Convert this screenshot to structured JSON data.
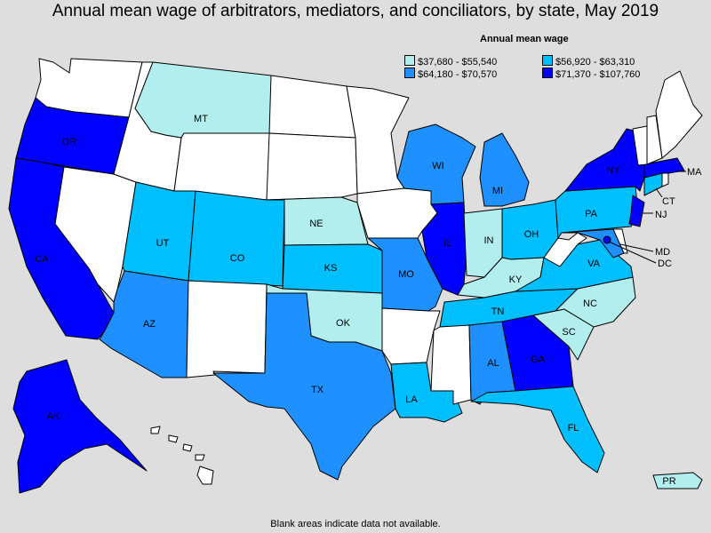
{
  "title": "Annual mean wage of arbitrators, mediators, and conciliators, by state, May 2019",
  "legend": {
    "title": "Annual mean wage",
    "bins": [
      {
        "label": "$37,680 - $55,540",
        "color": "#b3eeee"
      },
      {
        "label": "$56,920 - $63,310",
        "color": "#00bfff"
      },
      {
        "label": "$64,180 - $70,570",
        "color": "#1e90ff"
      },
      {
        "label": "$71,370 - $107,760",
        "color": "#0000ff"
      }
    ],
    "no_data_color": "#ffffff"
  },
  "footer": "Blank areas indicate data not available.",
  "states": {
    "WA": {
      "label": "",
      "bin": -1
    },
    "OR": {
      "label": "OR",
      "bin": 3
    },
    "CA": {
      "label": "CA",
      "bin": 3
    },
    "NV": {
      "label": "",
      "bin": -1
    },
    "ID": {
      "label": "",
      "bin": -1
    },
    "MT": {
      "label": "MT",
      "bin": 0
    },
    "WY": {
      "label": "",
      "bin": -1
    },
    "UT": {
      "label": "UT",
      "bin": 1
    },
    "AZ": {
      "label": "AZ",
      "bin": 2
    },
    "CO": {
      "label": "CO",
      "bin": 1
    },
    "NM": {
      "label": "",
      "bin": -1
    },
    "ND": {
      "label": "",
      "bin": -1
    },
    "SD": {
      "label": "",
      "bin": -1
    },
    "NE": {
      "label": "NE",
      "bin": 0
    },
    "KS": {
      "label": "KS",
      "bin": 1
    },
    "OK": {
      "label": "OK",
      "bin": 0
    },
    "TX": {
      "label": "TX",
      "bin": 2
    },
    "MN": {
      "label": "",
      "bin": -1
    },
    "IA": {
      "label": "",
      "bin": -1
    },
    "MO": {
      "label": "MO",
      "bin": 2
    },
    "AR": {
      "label": "",
      "bin": -1
    },
    "LA": {
      "label": "LA",
      "bin": 1
    },
    "WI": {
      "label": "WI",
      "bin": 2
    },
    "IL": {
      "label": "IL",
      "bin": 3
    },
    "MI": {
      "label": "MI",
      "bin": 2
    },
    "IN": {
      "label": "IN",
      "bin": 0
    },
    "OH": {
      "label": "OH",
      "bin": 1
    },
    "KY": {
      "label": "KY",
      "bin": 0
    },
    "TN": {
      "label": "TN",
      "bin": 1
    },
    "MS": {
      "label": "",
      "bin": -1
    },
    "AL": {
      "label": "AL",
      "bin": 2
    },
    "GA": {
      "label": "GA",
      "bin": 3
    },
    "FL": {
      "label": "FL",
      "bin": 1
    },
    "SC": {
      "label": "SC",
      "bin": 0
    },
    "NC": {
      "label": "NC",
      "bin": 0
    },
    "VA": {
      "label": "VA",
      "bin": 1
    },
    "WV": {
      "label": "",
      "bin": -1
    },
    "PA": {
      "label": "PA",
      "bin": 1
    },
    "NY": {
      "label": "NY",
      "bin": 3
    },
    "NJ": {
      "label": "NJ",
      "bin": 3
    },
    "MD": {
      "label": "MD",
      "bin": 2
    },
    "DE": {
      "label": "",
      "bin": -1
    },
    "DC": {
      "label": "DC",
      "bin": 3
    },
    "CT": {
      "label": "CT",
      "bin": 1
    },
    "RI": {
      "label": "",
      "bin": -1
    },
    "MA": {
      "label": "MA",
      "bin": 3
    },
    "VT": {
      "label": "",
      "bin": -1
    },
    "NH": {
      "label": "",
      "bin": -1
    },
    "ME": {
      "label": "",
      "bin": -1
    },
    "AK": {
      "label": "AK",
      "bin": 3
    },
    "HI": {
      "label": "",
      "bin": -1
    },
    "PR": {
      "label": "PR",
      "bin": 0
    }
  }
}
